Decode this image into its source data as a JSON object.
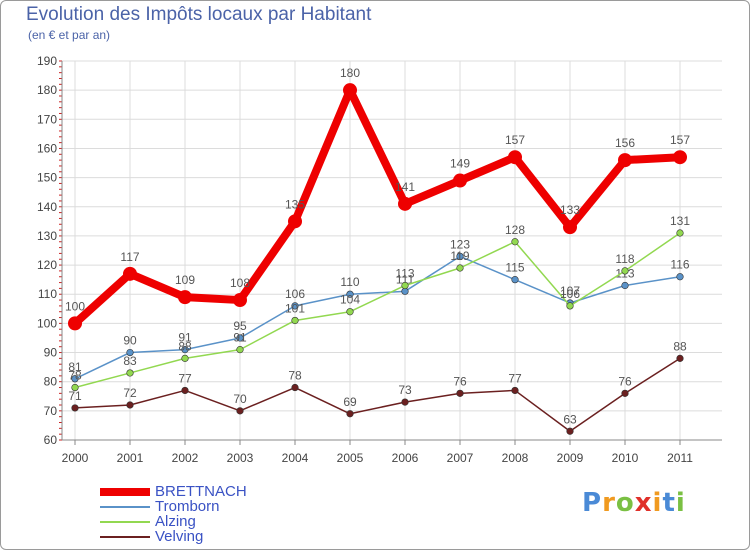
{
  "chart_data": {
    "type": "line",
    "title": "Evolution des Impôts locaux par Habitant",
    "subtitle": "(en € et par an)",
    "x": [
      "2000",
      "2001",
      "2002",
      "2003",
      "2004",
      "2005",
      "2006",
      "2007",
      "2008",
      "2009",
      "2010",
      "2011"
    ],
    "ylim": [
      60,
      190
    ],
    "yticks": [
      60,
      70,
      80,
      90,
      100,
      110,
      120,
      130,
      140,
      150,
      160,
      170,
      180,
      190
    ],
    "grid": true,
    "legend_position": "bottom-left",
    "series": [
      {
        "name": "BRETTNACH",
        "color": "#ee0000",
        "values": [
          100,
          117,
          109,
          108,
          135,
          180,
          141,
          149,
          157,
          133,
          156,
          157
        ],
        "emphasis": true
      },
      {
        "name": "Tromborn",
        "color": "#5a92c8",
        "values": [
          81,
          90,
          91,
          95,
          106,
          110,
          111,
          123,
          115,
          107,
          113,
          116
        ]
      },
      {
        "name": "Alzing",
        "color": "#92d850",
        "values": [
          78,
          83,
          88,
          91,
          101,
          104,
          113,
          119,
          128,
          106,
          118,
          131
        ]
      },
      {
        "name": "Velving",
        "color": "#6b2020",
        "values": [
          71,
          72,
          77,
          70,
          78,
          69,
          73,
          76,
          77,
          63,
          76,
          88
        ]
      }
    ]
  },
  "logo": {
    "letters": [
      "P",
      "r",
      "o",
      "x",
      "i",
      "t",
      "i"
    ],
    "colors": [
      "#4a8ad6",
      "#f09a20",
      "#7ac043",
      "#e0302a",
      "#f09a20",
      "#4a8ad6",
      "#7ac043"
    ]
  }
}
